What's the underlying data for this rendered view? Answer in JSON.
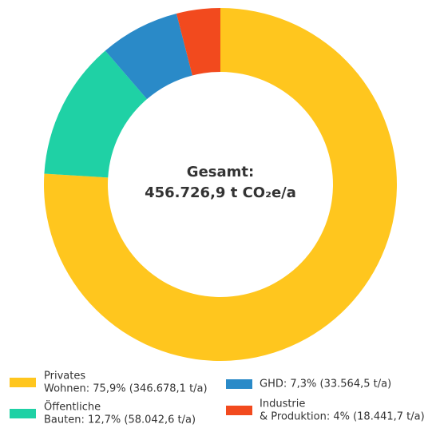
{
  "chart_data": {
    "type": "donut",
    "center_title": "Gesamt:",
    "center_value": "456.726,9 t CO₂e/a",
    "values": [
      75.9,
      12.7,
      7.3,
      4
    ],
    "colors": [
      "#FFC61E",
      "#1FD1A5",
      "#2A8AC8",
      "#F24A1E"
    ],
    "legend": [
      [
        "Privates",
        "Wohnen: 75,9% (346.678,1 t/a)"
      ],
      [
        "Öffentliche",
        "Bauten: 12,7% (58.042,6 t/a)"
      ],
      [
        "GHD: 7,3% (33.564,5 t/a)"
      ],
      [
        "Industrie",
        "& Produktion: 4% (18.441,7 t/a)"
      ]
    ]
  }
}
